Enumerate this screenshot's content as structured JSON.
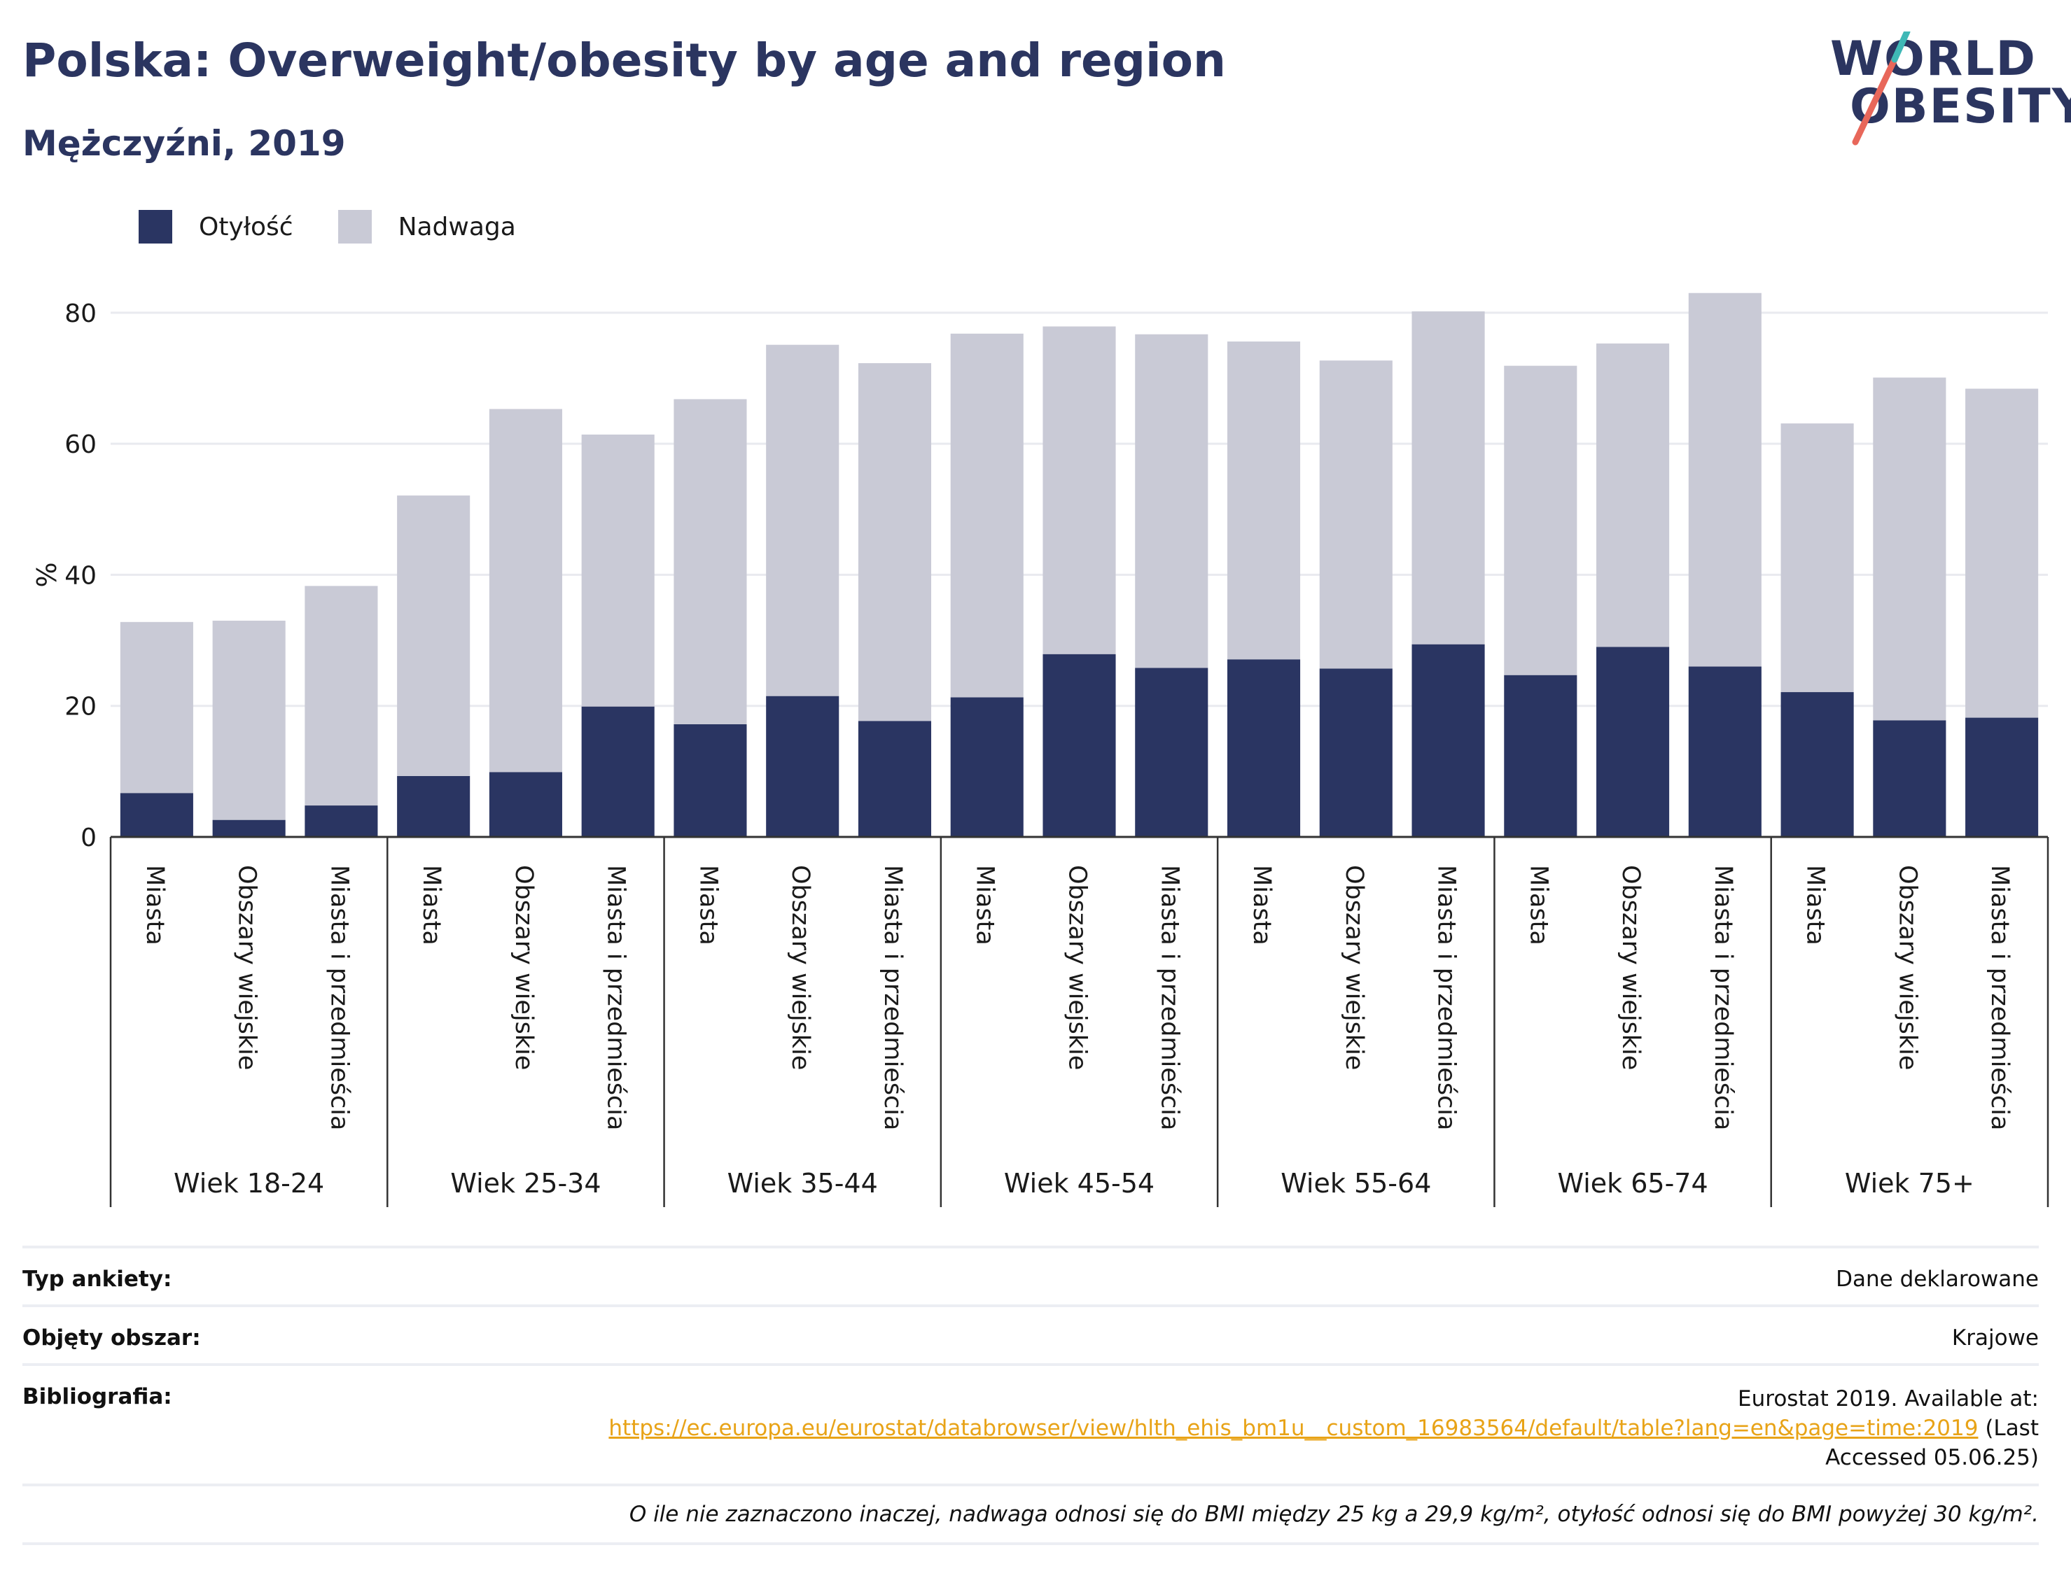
{
  "header": {
    "title": "Polska: Overweight/obesity by age and region",
    "subtitle": "Mężczyźni, 2019"
  },
  "logo": {
    "line1": "WORLD",
    "line2": "OBESITY"
  },
  "legend": [
    {
      "label": "Otyłość",
      "color": "#2a3562"
    },
    {
      "label": "Nadwaga",
      "color": "#c9cad6"
    }
  ],
  "chart_data": {
    "type": "bar",
    "stacked": true,
    "ylabel": "%",
    "ylim": [
      0,
      85
    ],
    "yticks": [
      0,
      20,
      40,
      60,
      80
    ],
    "grid": true,
    "legend_position": "top-left",
    "groups": [
      {
        "label": "Wiek 18-24",
        "categories": [
          "Miasta",
          "Obszary wiejskie",
          "Miasta i przedmieścia"
        ]
      },
      {
        "label": "Wiek 25-34",
        "categories": [
          "Miasta",
          "Obszary wiejskie",
          "Miasta i przedmieścia"
        ]
      },
      {
        "label": "Wiek 35-44",
        "categories": [
          "Miasta",
          "Obszary wiejskie",
          "Miasta i przedmieścia"
        ]
      },
      {
        "label": "Wiek 45-54",
        "categories": [
          "Miasta",
          "Obszary wiejskie",
          "Miasta i przedmieścia"
        ]
      },
      {
        "label": "Wiek 55-64",
        "categories": [
          "Miasta",
          "Obszary wiejskie",
          "Miasta i przedmieścia"
        ]
      },
      {
        "label": "Wiek 65-74",
        "categories": [
          "Miasta",
          "Obszary wiejskie",
          "Miasta i przedmieścia"
        ]
      },
      {
        "label": "Wiek 75+",
        "categories": [
          "Miasta",
          "Obszary wiejskie",
          "Miasta i przedmieścia"
        ]
      }
    ],
    "series": [
      {
        "name": "Otyłość",
        "color": "#2a3562",
        "values": [
          6.7,
          2.6,
          4.8,
          9.3,
          9.9,
          19.9,
          17.2,
          21.5,
          17.7,
          21.3,
          27.9,
          25.8,
          27.1,
          25.7,
          29.4,
          24.7,
          29.0,
          26.0,
          22.1,
          17.8,
          18.2
        ]
      },
      {
        "name": "Nadwaga",
        "color": "#c9cad6",
        "values": [
          26.1,
          30.4,
          33.5,
          42.8,
          55.4,
          41.5,
          49.6,
          53.6,
          54.6,
          55.5,
          50.0,
          50.9,
          48.5,
          47.0,
          50.8,
          47.2,
          46.3,
          57.0,
          41.0,
          52.3,
          50.2
        ]
      }
    ]
  },
  "info": {
    "survey_type_label": "Typ ankiety:",
    "survey_type_value": "Dane deklarowane",
    "coverage_label": "Objęty obszar:",
    "coverage_value": "Krajowe",
    "bibliography_label": "Bibliografia:",
    "bibliography_line1": "Eurostat 2019. Available at:",
    "bibliography_link": "https://ec.europa.eu/eurostat/databrowser/view/hlth_ehis_bm1u__custom_16983564/default/table?lang=en&page=time:2019",
    "bibliography_after_link": " (Last",
    "bibliography_line3": "Accessed 05.06.25)",
    "footnote": "O ile nie zaznaczono inaczej, nadwaga odnosi się do BMI między 25 kg a 29,9 kg/m², otyłość odnosi się do BMI powyżej 30 kg/m²."
  }
}
